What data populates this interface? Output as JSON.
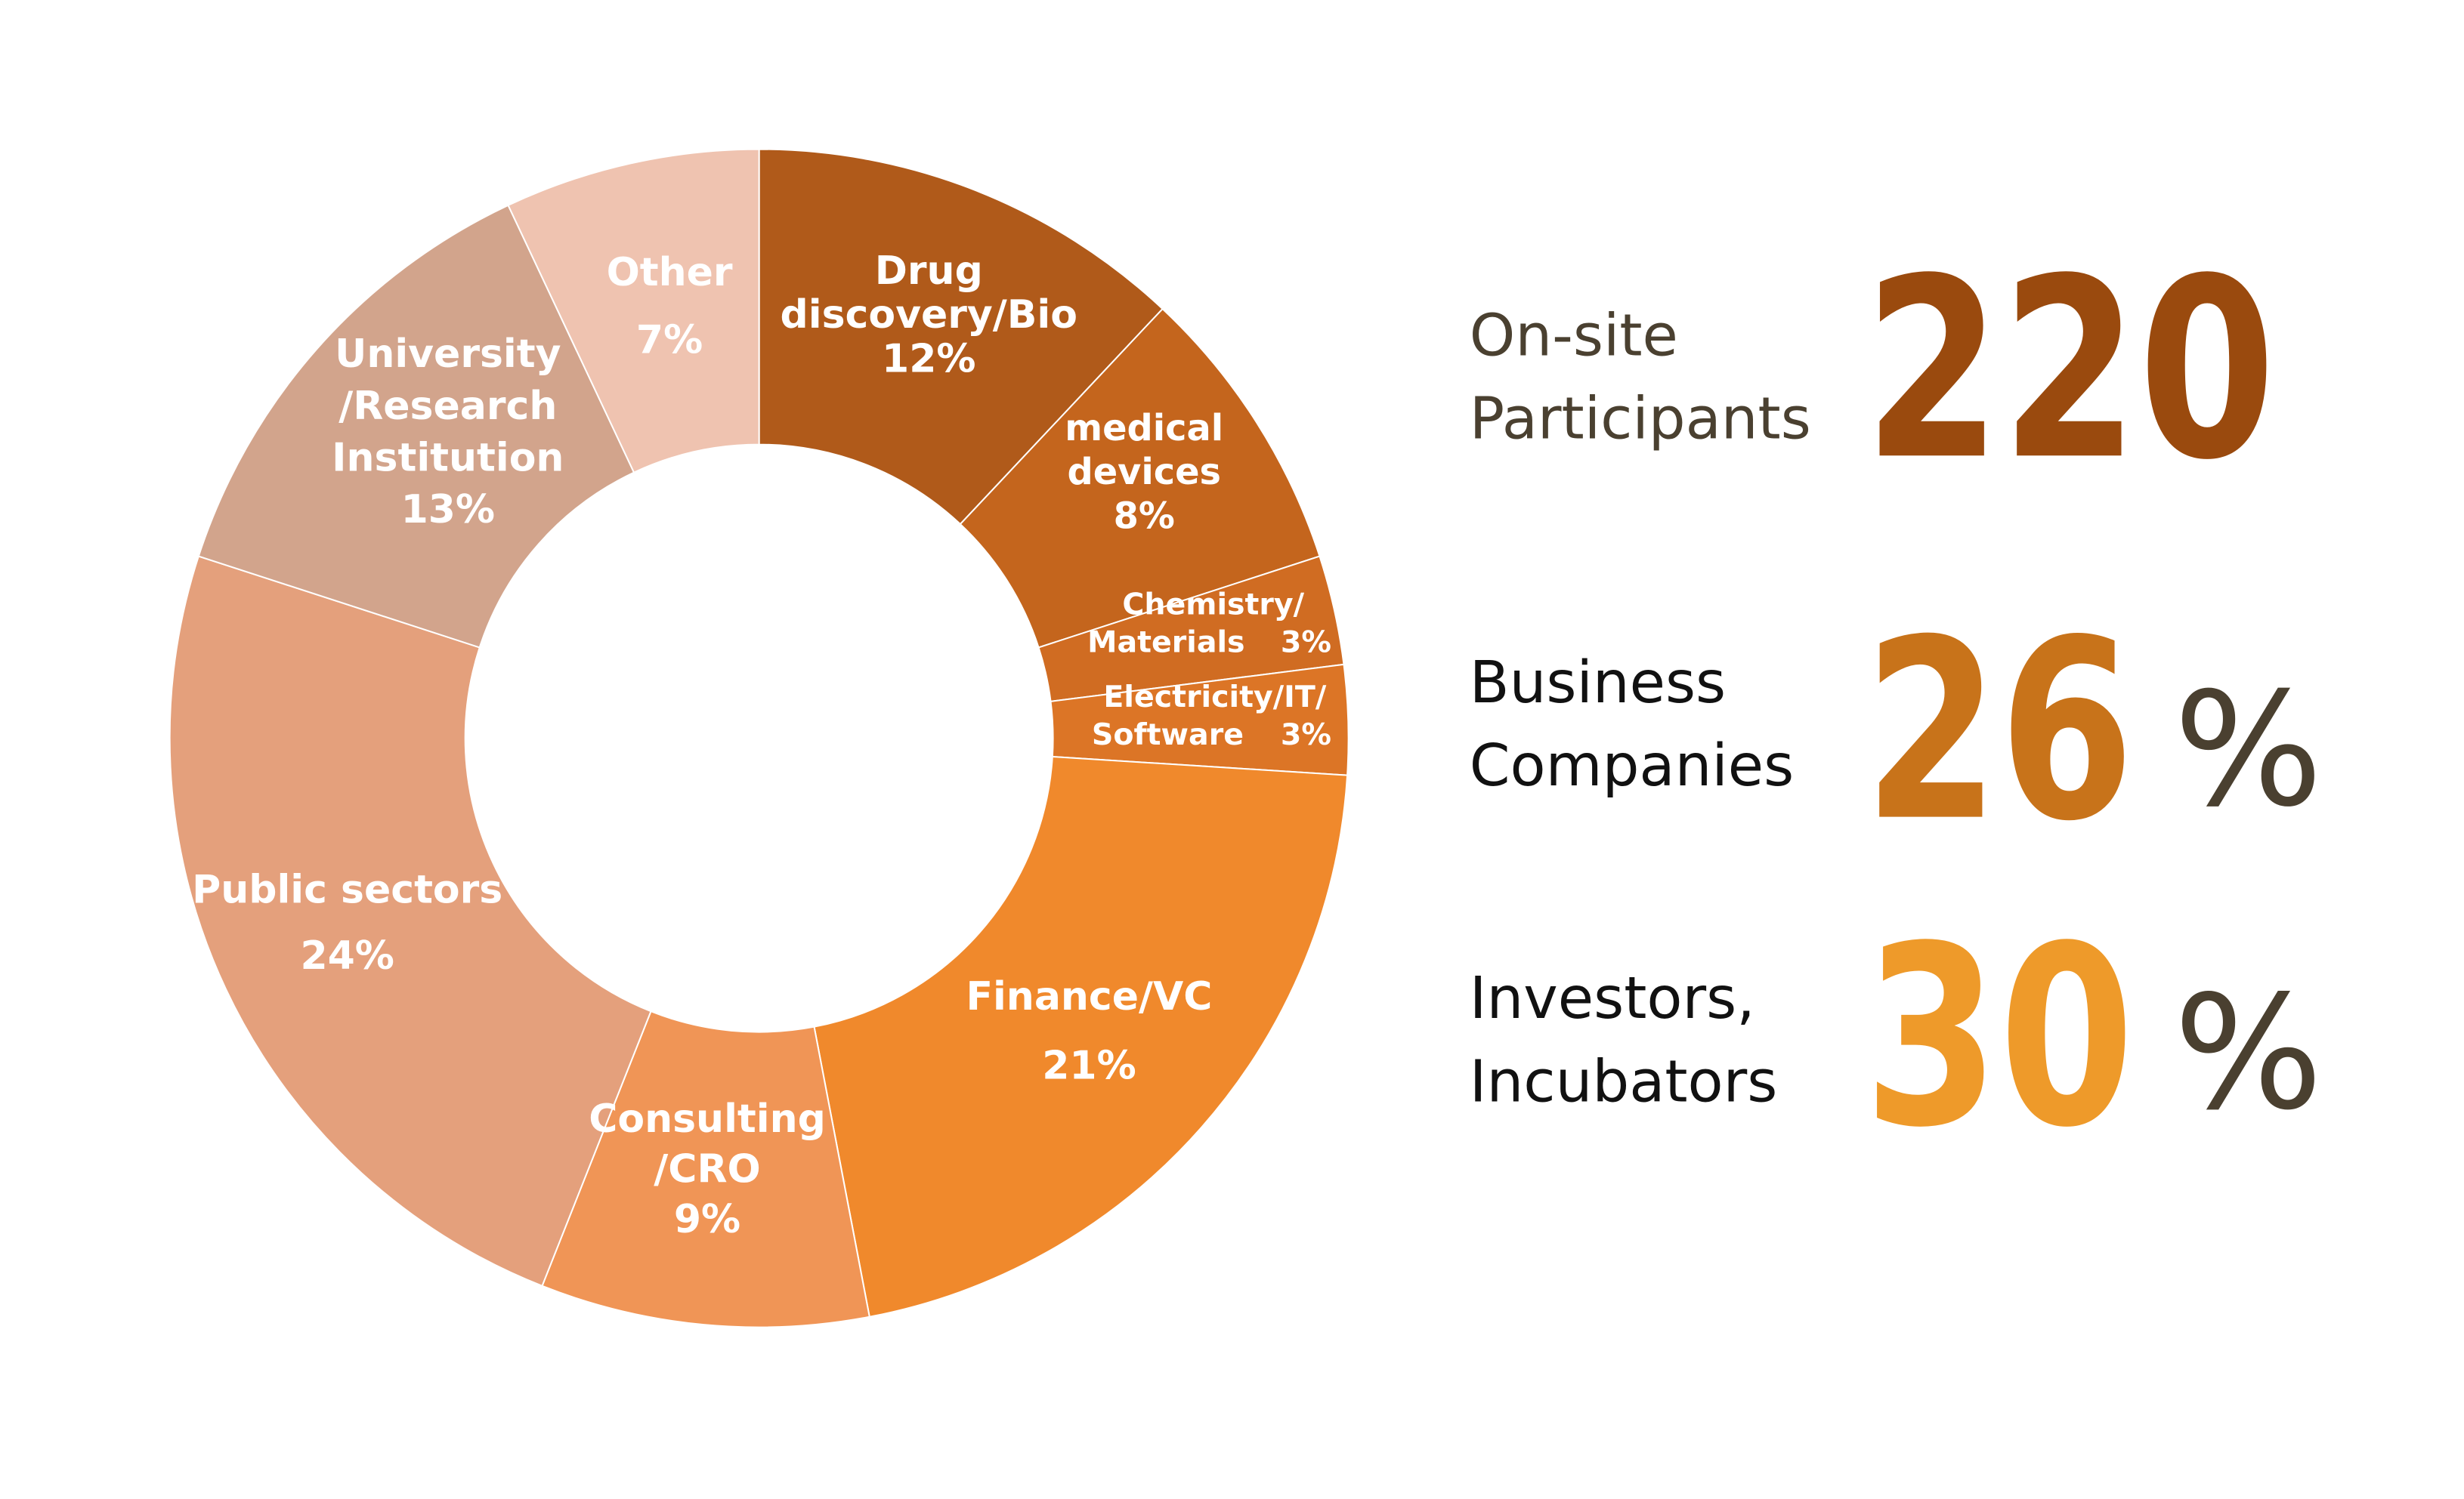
{
  "chart_data": {
    "type": "donut",
    "categories": [
      [
        "Drug",
        "discovery/Bio"
      ],
      [
        "medical",
        "devices"
      ],
      [
        "Chemistry/",
        "Materials"
      ],
      [
        "Electricity/IT/",
        "Software"
      ],
      [
        "Finance/VC"
      ],
      [
        "Consulting",
        "/CRO"
      ],
      [
        "Public sectors"
      ],
      [
        "University",
        "/Research",
        "Institution"
      ],
      [
        "Other"
      ]
    ],
    "values": [
      12,
      8,
      3,
      3,
      21,
      9,
      24,
      13,
      7
    ],
    "value_labels": [
      "12%",
      "8%",
      "3%",
      "3%",
      "21%",
      "9%",
      "24%",
      "13%",
      "7%"
    ],
    "colors": [
      "#b05a1a",
      "#c4651d",
      "#d06c22",
      "#dc7526",
      "#f0892c",
      "#f09556",
      "#e4a07c",
      "#d2a48c",
      "#efc3b0"
    ]
  },
  "stats": [
    {
      "label": [
        "On-site",
        "Participants"
      ],
      "value": "220",
      "color": "#9a4a0e"
    },
    {
      "label": [
        "Business",
        "Companies"
      ],
      "value": "26",
      "unit": "%",
      "color": "#c8731a"
    },
    {
      "label": [
        "Investors,",
        "Incubators"
      ],
      "value": "30",
      "unit": "%",
      "color": "#ee9a2a"
    }
  ]
}
